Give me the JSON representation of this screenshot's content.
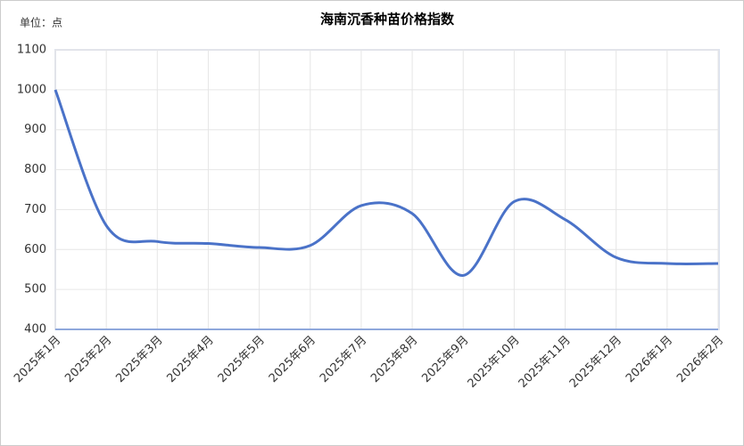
{
  "chart_data": {
    "type": "line",
    "title": "海南沉香种苗价格指数",
    "unit_label": "单位：点",
    "categories": [
      "2025年1月",
      "2025年2月",
      "2025年3月",
      "2025年4月",
      "2025年5月",
      "2025年6月",
      "2025年7月",
      "2025年8月",
      "2025年9月",
      "2025年10月",
      "2025年11月",
      "2025年12月",
      "2026年1月",
      "2026年2月"
    ],
    "series": [
      {
        "name": "海南沉香种苗价格指数",
        "color": "#4a72c8",
        "values": [
          1000,
          660,
          620,
          615,
          605,
          610,
          710,
          690,
          535,
          720,
          675,
          580,
          565,
          565
        ]
      }
    ],
    "ylim": [
      400,
      1100
    ],
    "yticks": [
      400,
      500,
      600,
      700,
      800,
      900,
      1000,
      1100
    ],
    "grid": true,
    "smooth": true
  }
}
